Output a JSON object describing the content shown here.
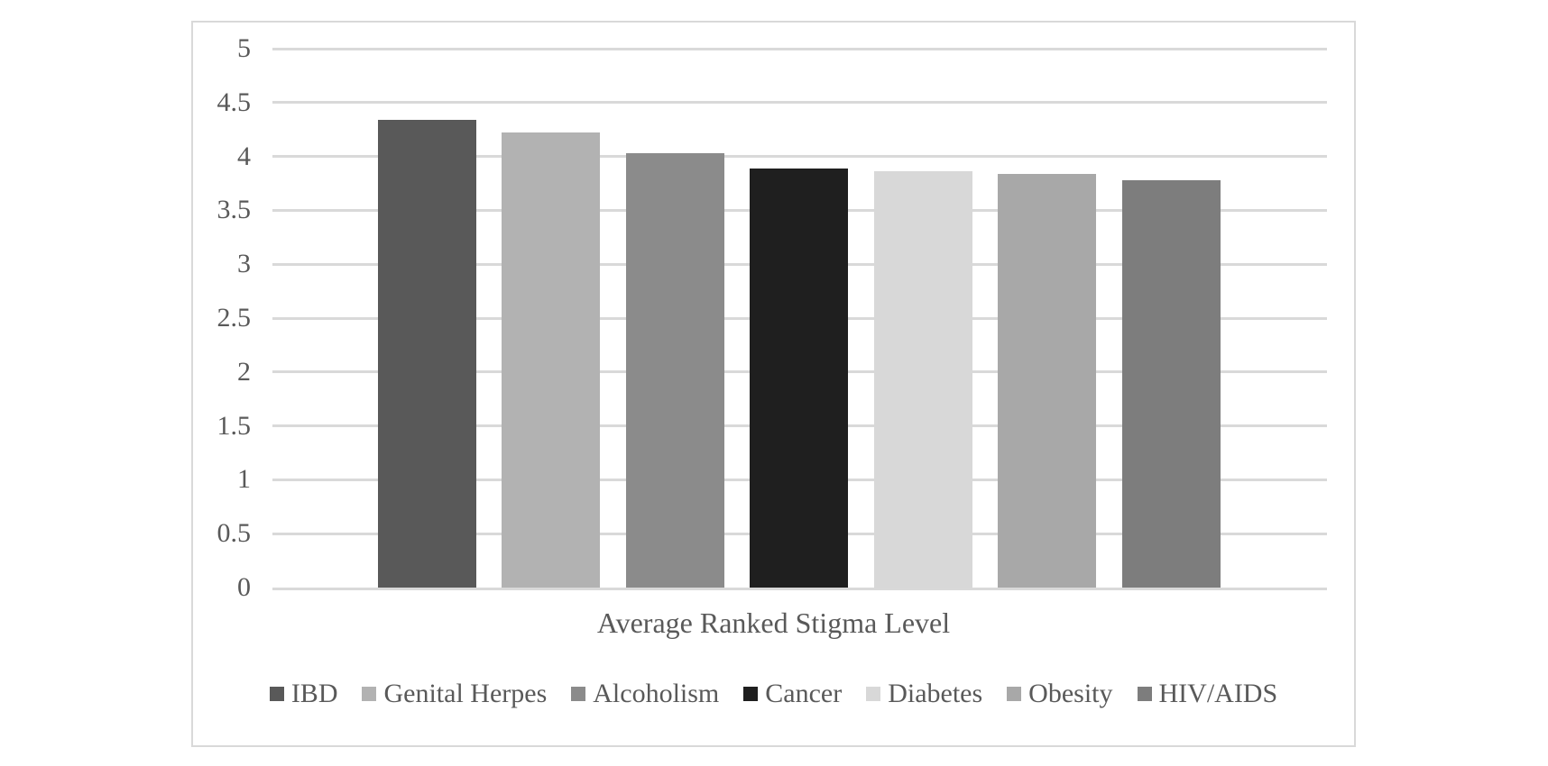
{
  "chart_data": {
    "type": "bar",
    "categories": [
      "IBD",
      "Genital Herpes",
      "Alcoholism",
      "Cancer",
      "Diabetes",
      "Obesity",
      "HIV/AIDS"
    ],
    "values": [
      4.34,
      4.22,
      4.03,
      3.89,
      3.86,
      3.84,
      3.78
    ],
    "colors": [
      "#595959",
      "#b2b2b2",
      "#8b8b8b",
      "#1f1f1f",
      "#d8d8d8",
      "#a8a8a8",
      "#7d7d7d"
    ],
    "title": "",
    "xlabel": "Average Ranked Stigma Level",
    "ylabel": "",
    "ylim": [
      0,
      5
    ],
    "yticks": [
      0,
      0.5,
      1,
      1.5,
      2,
      2.5,
      3,
      3.5,
      4,
      4.5,
      5
    ],
    "ytick_labels": [
      "0",
      "0.5",
      "1",
      "1.5",
      "2",
      "2.5",
      "3",
      "3.5",
      "4",
      "4.5",
      "5"
    ],
    "grid": true,
    "legend_position": "bottom",
    "legend": [
      "IBD",
      "Genital Herpes",
      "Alcoholism",
      "Cancer",
      "Diabetes",
      "Obesity",
      "HIV/AIDS"
    ]
  },
  "styles": {
    "background": "#ffffff",
    "frame_border_color": "#d9d9d9",
    "gridline_color": "#d9d9d9",
    "text_color": "#595959"
  }
}
